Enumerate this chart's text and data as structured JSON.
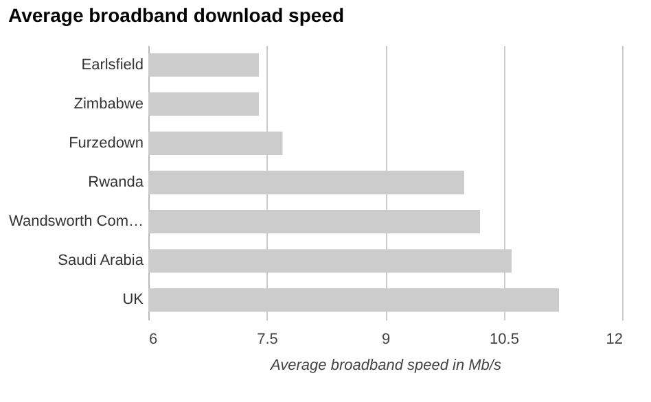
{
  "chart_data": {
    "type": "bar",
    "orientation": "horizontal",
    "title": "Average broadband download speed",
    "xlabel": "Average broadband speed in Mb/s",
    "categories": [
      "Earlsfield",
      "Zimbabwe",
      "Furzedown",
      "Rwanda",
      "Wandsworth Com…",
      "Saudi Arabia",
      "UK"
    ],
    "values": [
      7.4,
      7.4,
      7.7,
      10.0,
      10.2,
      10.6,
      11.2
    ],
    "color": "#cccccc",
    "xlim": [
      6,
      12
    ],
    "xticks": [
      6,
      7.5,
      9,
      10.5,
      12
    ],
    "grid": "x",
    "legend": false
  }
}
